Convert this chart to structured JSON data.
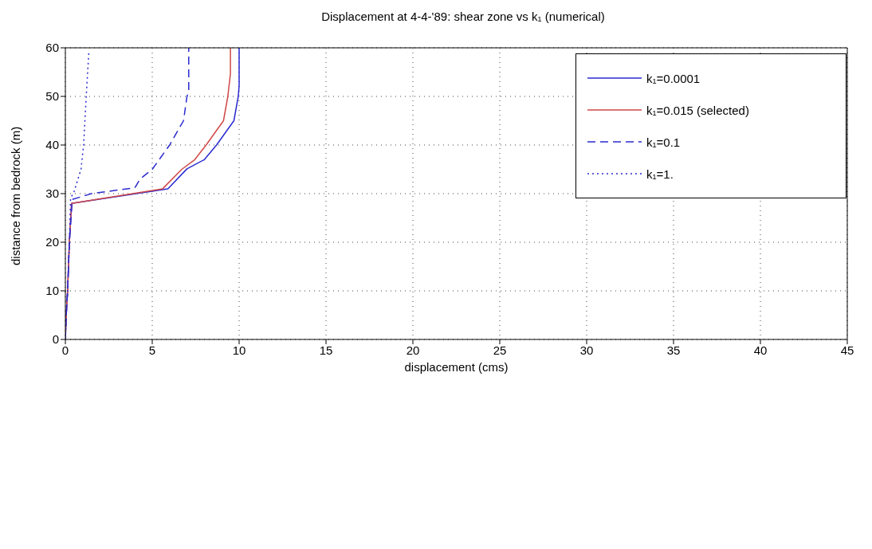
{
  "chart_data": {
    "type": "line",
    "title": "Displacement at 4-4-'89: shear zone vs k₁ (numerical)",
    "xlabel": "displacement (cms)",
    "ylabel": "distance from bedrock (m)",
    "xlim": [
      0,
      45
    ],
    "xticks": [
      0,
      5,
      10,
      15,
      20,
      25,
      30,
      35,
      40,
      45
    ],
    "ylim": [
      0,
      60
    ],
    "yticks": [
      0,
      10,
      20,
      30,
      40,
      50,
      60
    ],
    "grid": true,
    "legend": "top right",
    "marker": "none",
    "series": [
      {
        "name": "k₁=0.0001",
        "color": "#2a2ad0",
        "line_style": "solid",
        "x": [
          0,
          0.05,
          0.13,
          0.23,
          0.36,
          5.9,
          7.0,
          8.0,
          8.7,
          9.7,
          9.95,
          10.0,
          10.0
        ],
        "values": [
          0,
          5,
          10,
          20,
          28,
          31,
          35.1,
          37,
          40,
          45,
          50,
          52.2,
          60
        ]
      },
      {
        "name": "k₁=0.015 (selected)",
        "color": "#d04848",
        "line_style": "solid",
        "x": [
          0,
          0.05,
          0.13,
          0.23,
          0.36,
          5.6,
          6.7,
          7.45,
          8.1,
          9.1,
          9.35,
          9.5,
          9.5
        ],
        "values": [
          0,
          5,
          10,
          20,
          28,
          31,
          35,
          37,
          40,
          45,
          50,
          54.7,
          60
        ]
      },
      {
        "name": "k₁=0.1",
        "color": "#2a2ad0",
        "line_style": "dashed",
        "x": [
          0,
          0.05,
          0.13,
          0.23,
          0.4,
          1.5,
          4.0,
          4.3,
          5.0,
          6.0,
          6.8,
          7.0,
          7.1,
          7.1
        ],
        "values": [
          0,
          5,
          10,
          20,
          28.8,
          30,
          31.2,
          33,
          35,
          40,
          45,
          50,
          51,
          60
        ]
      },
      {
        "name": "k₁=1.",
        "color": "#2a2ad0",
        "line_style": "dotted",
        "x": [
          0,
          0.05,
          0.13,
          0.23,
          0.3,
          0.5,
          0.9,
          1.05,
          1.2,
          1.35
        ],
        "values": [
          0,
          5,
          10,
          20,
          29,
          30.4,
          35,
          40,
          50,
          59
        ]
      }
    ]
  }
}
